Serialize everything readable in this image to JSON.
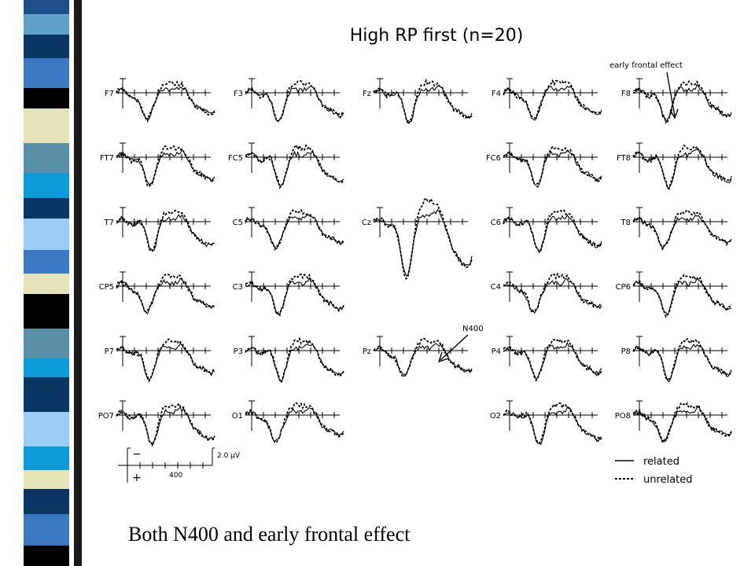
{
  "title": "High RP first (n=20)",
  "columns": [
    [
      "F7",
      "FT7",
      "T7",
      "CP5",
      "P7",
      "PO7"
    ],
    [
      "F3",
      "FC5",
      "C5",
      "C3",
      "P3",
      "O1"
    ],
    [
      "Fz",
      null,
      "Cz",
      null,
      "Pz",
      null
    ],
    [
      "F4",
      "FC6",
      "C6",
      "C4",
      "P4",
      "O2"
    ],
    [
      "F8",
      "FT8",
      "T8",
      "CP6",
      "P8",
      "PO8"
    ]
  ],
  "annotations": {
    "early_frontal": "early frontal effect",
    "n400": "N400"
  },
  "scale": {
    "amplitude": "2.0 µV",
    "time": "400",
    "negative": "−",
    "positive": "+"
  },
  "legend": {
    "solid": "related",
    "dashed": "unrelated"
  },
  "caption": "Both N400 and early frontal effect"
}
